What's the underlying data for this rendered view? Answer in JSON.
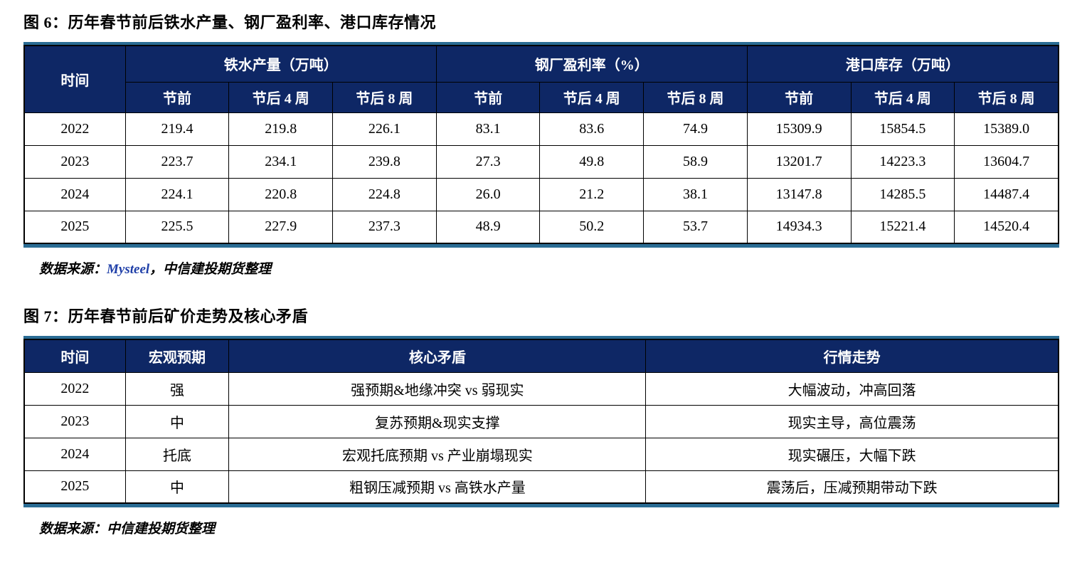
{
  "colors": {
    "header_bg": "#0E2765",
    "accent_line": "#2A6C94",
    "mysteel_blue": "#1F3FA8"
  },
  "figure6": {
    "title": "图 6：历年春节前后铁水产量、钢厂盈利率、港口库存情况",
    "table": {
      "time_header": "时间",
      "groups": [
        {
          "label": "铁水产量（万吨）"
        },
        {
          "label": "钢厂盈利率（%）"
        },
        {
          "label": "港口库存（万吨）"
        }
      ],
      "sub_headers": [
        "节前",
        "节后 4 周",
        "节后 8 周"
      ],
      "rows": [
        {
          "year": "2022",
          "values": [
            "219.4",
            "219.8",
            "226.1",
            "83.1",
            "83.6",
            "74.9",
            "15309.9",
            "15854.5",
            "15389.0"
          ]
        },
        {
          "year": "2023",
          "values": [
            "223.7",
            "234.1",
            "239.8",
            "27.3",
            "49.8",
            "58.9",
            "13201.7",
            "14223.3",
            "13604.7"
          ]
        },
        {
          "year": "2024",
          "values": [
            "224.1",
            "220.8",
            "224.8",
            "26.0",
            "21.2",
            "38.1",
            "13147.8",
            "14285.5",
            "14487.4"
          ]
        },
        {
          "year": "2025",
          "values": [
            "225.5",
            "227.9",
            "237.3",
            "48.9",
            "50.2",
            "53.7",
            "14934.3",
            "15221.4",
            "14520.4"
          ]
        }
      ]
    },
    "source": {
      "prefix": "数据来源：",
      "link": "Mysteel",
      "suffix": "，中信建投期货整理"
    }
  },
  "figure7": {
    "title": "图 7：历年春节前后矿价走势及核心矛盾",
    "table": {
      "headers": [
        "时间",
        "宏观预期",
        "核心矛盾",
        "行情走势"
      ],
      "rows": [
        [
          "2022",
          "强",
          "强预期&地缘冲突 vs 弱现实",
          "大幅波动，冲高回落"
        ],
        [
          "2023",
          "中",
          "复苏预期&现实支撑",
          "现实主导，高位震荡"
        ],
        [
          "2024",
          "托底",
          "宏观托底预期 vs 产业崩塌现实",
          "现实碾压，大幅下跌"
        ],
        [
          "2025",
          "中",
          "粗钢压减预期 vs 高铁水产量",
          "震荡后，压减预期带动下跌"
        ]
      ]
    },
    "source": {
      "prefix": "数据来源：",
      "suffix": "中信建投期货整理"
    }
  }
}
